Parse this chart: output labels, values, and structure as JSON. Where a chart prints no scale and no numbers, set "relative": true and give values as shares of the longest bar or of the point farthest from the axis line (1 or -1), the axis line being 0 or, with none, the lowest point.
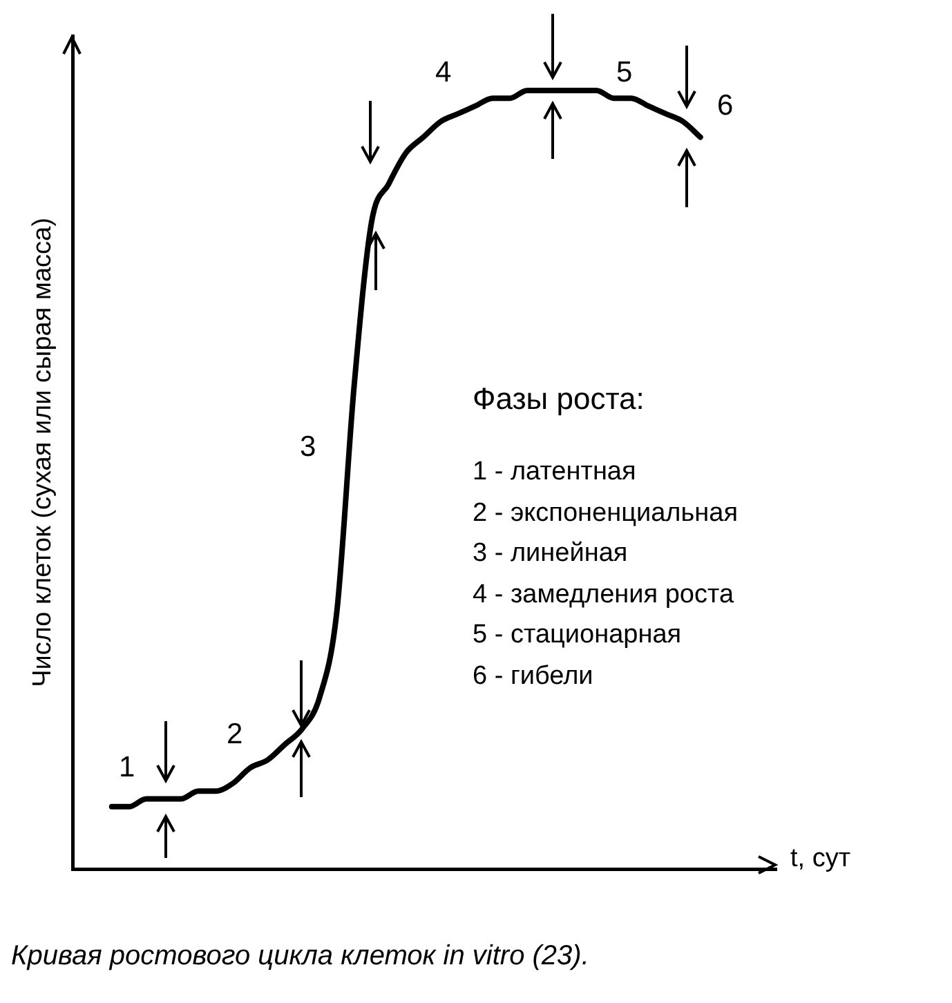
{
  "chart_data": {
    "type": "line",
    "relative": true,
    "ylabel": "Число клеток (сухая или сырая масса)",
    "xlabel": "t, сут",
    "legend_title": "Фазы роста:",
    "legend": false,
    "marker": "none",
    "grid": false,
    "categories": [
      null,
      null,
      null,
      null,
      null,
      null,
      null,
      null,
      null,
      null,
      null,
      null,
      null,
      null,
      null,
      null,
      null,
      null,
      null,
      null,
      null,
      null,
      null,
      null,
      null,
      null,
      null,
      null,
      null,
      null,
      null,
      null,
      null,
      null,
      null
    ],
    "series": [
      {
        "color": "#000000",
        "values": [
          0.08,
          0.08,
          0.09,
          0.09,
          0.09,
          0.1,
          0.1,
          0.11,
          0.13,
          0.14,
          0.16,
          0.18,
          0.22,
          0.33,
          0.62,
          0.83,
          0.88,
          0.92,
          0.94,
          0.96,
          0.97,
          0.98,
          0.99,
          0.99,
          1.0,
          1,
          1,
          1,
          1.0,
          0.99,
          0.99,
          0.98,
          0.97,
          0.96,
          0.94
        ]
      }
    ],
    "annotations": [
      "1",
      "2",
      "3",
      "4",
      "5",
      "6",
      "1 - латентная",
      "2 - экспоненциальная",
      "3 - линейная",
      "4 - замедления роста",
      "5 - стационарная",
      "6 - гибели",
      "Кривая ростового цикла клеток in vitro (23)."
    ]
  }
}
